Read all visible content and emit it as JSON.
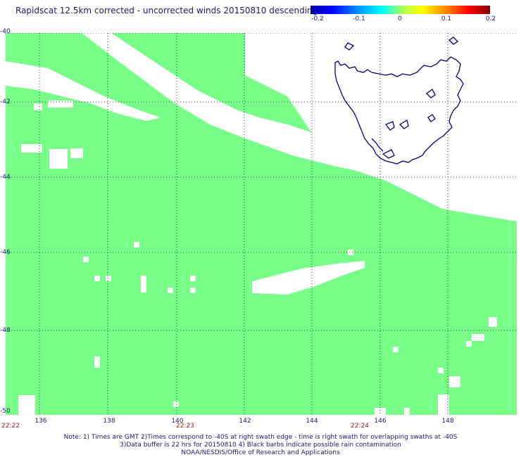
{
  "title": "Rapidscat 12.5km corrected - uncorrected winds 20150810 descending",
  "colorbar": {
    "labels": [
      "-0.2",
      "-0.1",
      "0",
      "0.1",
      "0.2"
    ],
    "colors": [
      "#0000a0",
      "#0000ff",
      "#00ffff",
      "#a0ff60",
      "#ffff00",
      "#ff0000",
      "#800000"
    ]
  },
  "map": {
    "region": "Tasmania and Southern Ocean",
    "land_outline_color": "#000080",
    "data_color": "#77ff88",
    "lat_labels": [
      "-40",
      "-42",
      "-44",
      "-46",
      "-48",
      "-50"
    ],
    "lon_labels": [
      "136",
      "138",
      "140",
      "142",
      "144",
      "146",
      "148"
    ]
  },
  "times": {
    "left": "22:22",
    "middle": "22:23",
    "right": "22:24"
  },
  "notes": {
    "line1": "Note: 1) Times are GMT 2)Times correspond to -40S at right swath edge - time is right swath for overlapping swaths at -40S",
    "line2": "3)Data buffer is 22 hrs for 20150810 4) Black barbs indicate possible rain contamination",
    "line3": "NOAA/NESDIS/Office of Research and Applications"
  }
}
